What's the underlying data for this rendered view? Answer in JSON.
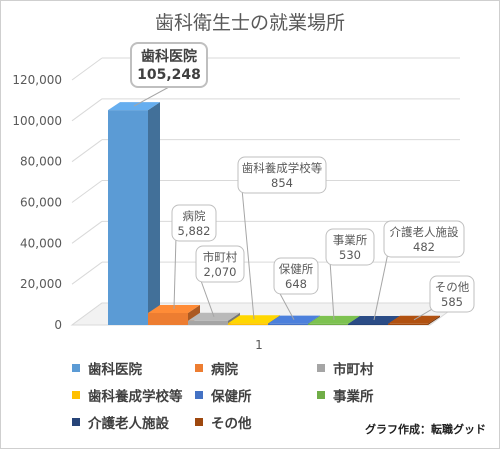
{
  "chart_data": {
    "type": "bar",
    "title": "歯科衛生士の就業場所",
    "categories": [
      "1"
    ],
    "ylim": [
      0,
      120000
    ],
    "yticks": [
      "0",
      "20,000",
      "40,000",
      "60,000",
      "80,000",
      "100,000",
      "120,000"
    ],
    "grid": true,
    "legend_position": "bottom",
    "series": [
      {
        "name": "歯科医院",
        "value": 105248,
        "label": "105,248",
        "color": "#5b9bd5"
      },
      {
        "name": "病院",
        "value": 5882,
        "label": "5,882",
        "color": "#ed7d31"
      },
      {
        "name": "市町村",
        "value": 2070,
        "label": "2,070",
        "color": "#a5a5a5"
      },
      {
        "name": "歯科養成学校等",
        "value": 854,
        "label": "854",
        "color": "#ffc000"
      },
      {
        "name": "保健所",
        "value": 648,
        "label": "648",
        "color": "#4472c4"
      },
      {
        "name": "事業所",
        "value": 530,
        "label": "530",
        "color": "#70ad47"
      },
      {
        "name": "介護老人施設",
        "value": 482,
        "label": "482",
        "color": "#264478"
      },
      {
        "name": "その他",
        "value": 585,
        "label": "585",
        "color": "#9e480e"
      }
    ],
    "credit": "グラフ作成：転職グッド"
  }
}
